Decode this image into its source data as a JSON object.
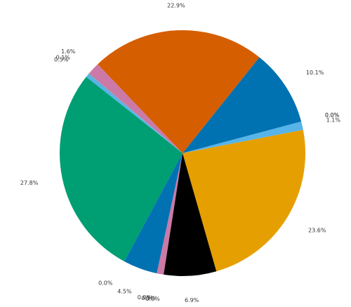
{
  "chart_data": {
    "type": "pie",
    "categories": [
      null,
      null,
      null,
      null,
      null,
      null,
      null,
      null,
      null,
      null,
      null,
      null,
      null,
      null,
      null,
      null
    ],
    "values": [
      23.6,
      1.1,
      0.0,
      0.0,
      10.1,
      22.9,
      1.6,
      0.1,
      0.5,
      27.8,
      0.0,
      4.5,
      0.0,
      0.9,
      0.0,
      6.9
    ],
    "value_labels": [
      "23.6%",
      "1.1%",
      "0.0%",
      "0.0%",
      "10.1%",
      "22.9%",
      "1.6%",
      "0.1%",
      "0.5%",
      "27.8%",
      "0.0%",
      "4.5%",
      "0.0%",
      "0.9%",
      "0.0%",
      "6.9%"
    ],
    "colors": [
      "#e69f00",
      "#56b4e9",
      "#009e73",
      "#f0e442",
      "#0072b2",
      "#d55e00",
      "#cc79a7",
      "#949494",
      "#56b4e9",
      "#009e73",
      "#f0e442",
      "#0072b2",
      "#d55e00",
      "#cc79a7",
      "#949494",
      "#000000"
    ]
  }
}
